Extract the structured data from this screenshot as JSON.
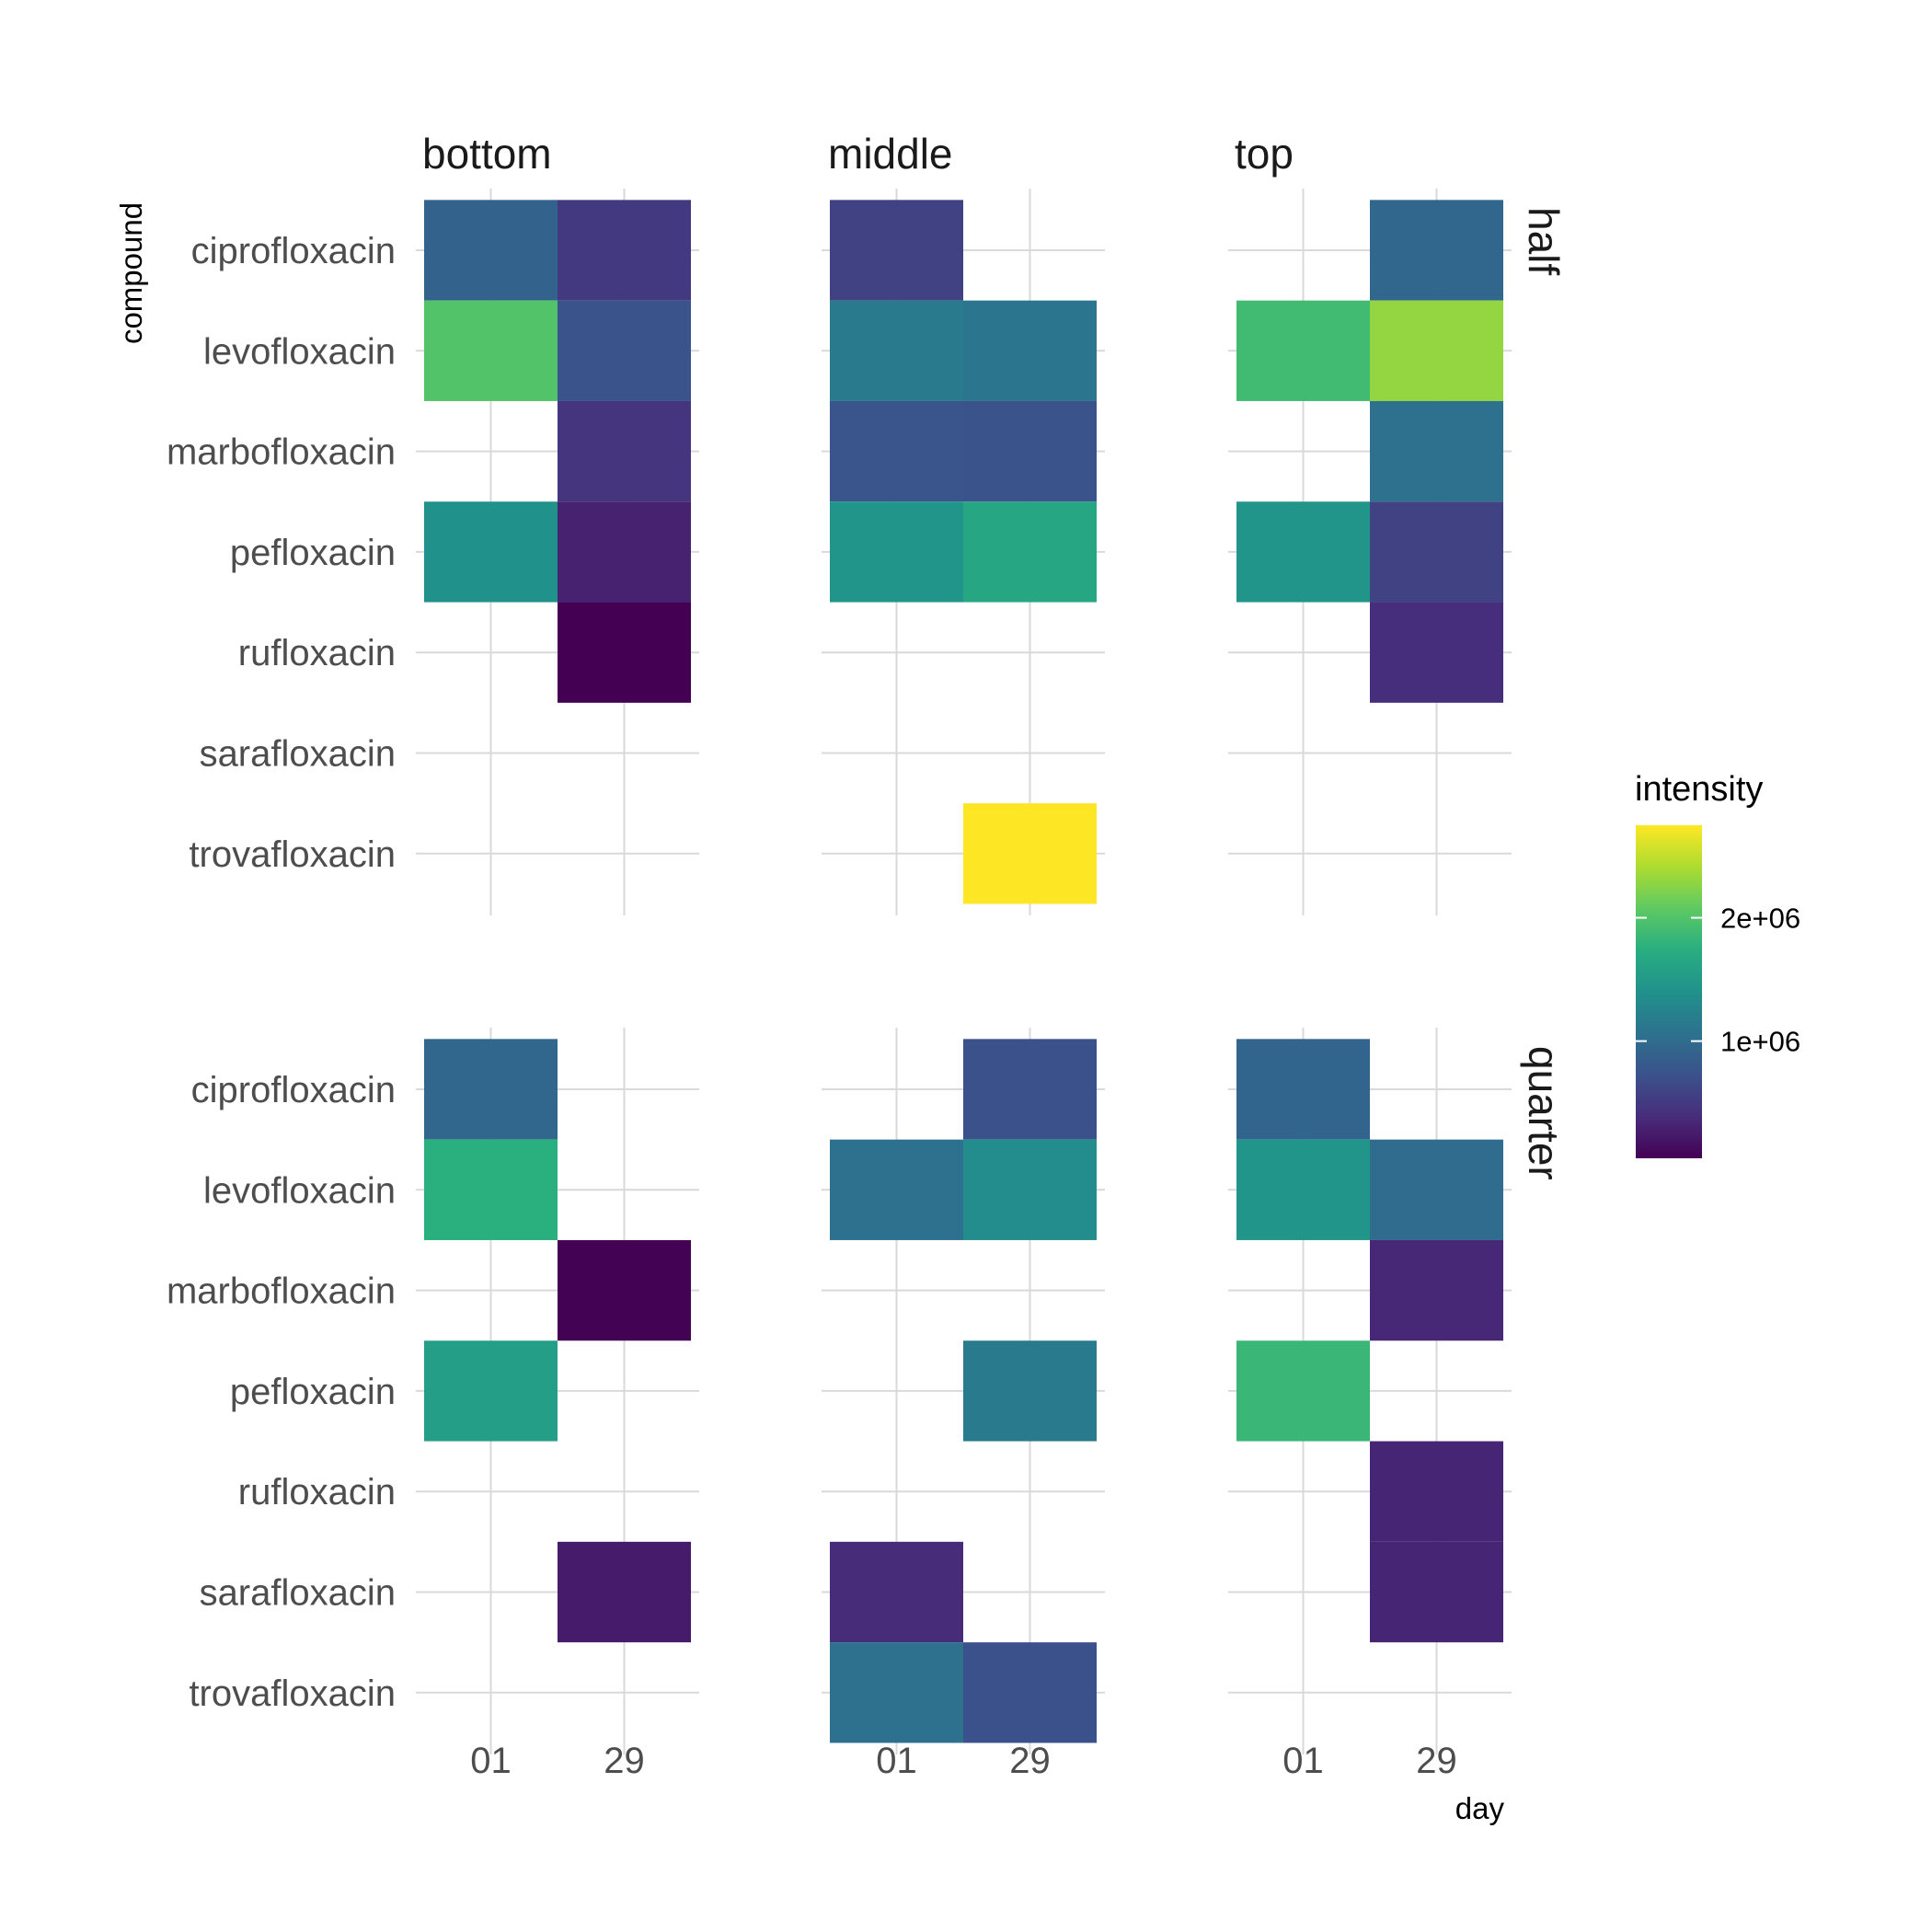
{
  "chart_data": {
    "type": "heatmap",
    "xlabel": "day",
    "ylabel": "compound",
    "x_categories": [
      "01",
      "29"
    ],
    "y_categories": [
      "ciprofloxacin",
      "levofloxacin",
      "marbofloxacin",
      "pefloxacin",
      "rufloxacin",
      "sarafloxacin",
      "trovafloxacin"
    ],
    "col_facets": [
      "bottom",
      "middle",
      "top"
    ],
    "row_facets": [
      "half",
      "quarter"
    ],
    "fill": {
      "name": "intensity",
      "palette": "viridis",
      "min": 50000,
      "max": 2750000,
      "breaks": [
        1000000,
        2000000
      ],
      "break_labels": [
        "1e+06",
        "2e+06"
      ]
    },
    "grid": true,
    "legend_position": "right",
    "cells": [
      {
        "row": "half",
        "col": "bottom",
        "day": "01",
        "compound": "ciprofloxacin",
        "value": 900000
      },
      {
        "row": "half",
        "col": "bottom",
        "day": "29",
        "compound": "ciprofloxacin",
        "value": 500000
      },
      {
        "row": "half",
        "col": "bottom",
        "day": "01",
        "compound": "levofloxacin",
        "value": 2000000
      },
      {
        "row": "half",
        "col": "bottom",
        "day": "29",
        "compound": "levofloxacin",
        "value": 750000
      },
      {
        "row": "half",
        "col": "bottom",
        "day": "29",
        "compound": "marbofloxacin",
        "value": 450000
      },
      {
        "row": "half",
        "col": "bottom",
        "day": "01",
        "compound": "pefloxacin",
        "value": 1400000
      },
      {
        "row": "half",
        "col": "bottom",
        "day": "29",
        "compound": "pefloxacin",
        "value": 300000
      },
      {
        "row": "half",
        "col": "bottom",
        "day": "29",
        "compound": "rufloxacin",
        "value": 50000
      },
      {
        "row": "half",
        "col": "middle",
        "day": "01",
        "compound": "ciprofloxacin",
        "value": 580000
      },
      {
        "row": "half",
        "col": "middle",
        "day": "01",
        "compound": "levofloxacin",
        "value": 1150000
      },
      {
        "row": "half",
        "col": "middle",
        "day": "29",
        "compound": "levofloxacin",
        "value": 1100000
      },
      {
        "row": "half",
        "col": "middle",
        "day": "01",
        "compound": "marbofloxacin",
        "value": 760000
      },
      {
        "row": "half",
        "col": "middle",
        "day": "29",
        "compound": "marbofloxacin",
        "value": 740000
      },
      {
        "row": "half",
        "col": "middle",
        "day": "01",
        "compound": "pefloxacin",
        "value": 1450000
      },
      {
        "row": "half",
        "col": "middle",
        "day": "29",
        "compound": "pefloxacin",
        "value": 1650000
      },
      {
        "row": "half",
        "col": "middle",
        "day": "29",
        "compound": "trovafloxacin",
        "value": 2750000
      },
      {
        "row": "half",
        "col": "top",
        "day": "29",
        "compound": "ciprofloxacin",
        "value": 950000
      },
      {
        "row": "half",
        "col": "top",
        "day": "01",
        "compound": "levofloxacin",
        "value": 1900000
      },
      {
        "row": "half",
        "col": "top",
        "day": "29",
        "compound": "levofloxacin",
        "value": 2300000
      },
      {
        "row": "half",
        "col": "top",
        "day": "29",
        "compound": "marbofloxacin",
        "value": 1050000
      },
      {
        "row": "half",
        "col": "top",
        "day": "01",
        "compound": "pefloxacin",
        "value": 1450000
      },
      {
        "row": "half",
        "col": "top",
        "day": "29",
        "compound": "pefloxacin",
        "value": 580000
      },
      {
        "row": "half",
        "col": "top",
        "day": "29",
        "compound": "rufloxacin",
        "value": 400000
      },
      {
        "row": "quarter",
        "col": "bottom",
        "day": "01",
        "compound": "ciprofloxacin",
        "value": 950000
      },
      {
        "row": "quarter",
        "col": "bottom",
        "day": "01",
        "compound": "levofloxacin",
        "value": 1750000
      },
      {
        "row": "quarter",
        "col": "bottom",
        "day": "29",
        "compound": "marbofloxacin",
        "value": 60000
      },
      {
        "row": "quarter",
        "col": "bottom",
        "day": "01",
        "compound": "pefloxacin",
        "value": 1550000
      },
      {
        "row": "quarter",
        "col": "bottom",
        "day": "29",
        "compound": "sarafloxacin",
        "value": 250000
      },
      {
        "row": "quarter",
        "col": "middle",
        "day": "29",
        "compound": "ciprofloxacin",
        "value": 720000
      },
      {
        "row": "quarter",
        "col": "middle",
        "day": "01",
        "compound": "levofloxacin",
        "value": 1050000
      },
      {
        "row": "quarter",
        "col": "middle",
        "day": "29",
        "compound": "levofloxacin",
        "value": 1350000
      },
      {
        "row": "quarter",
        "col": "middle",
        "day": "29",
        "compound": "pefloxacin",
        "value": 1150000
      },
      {
        "row": "quarter",
        "col": "middle",
        "day": "01",
        "compound": "sarafloxacin",
        "value": 380000
      },
      {
        "row": "quarter",
        "col": "middle",
        "day": "01",
        "compound": "trovafloxacin",
        "value": 1050000
      },
      {
        "row": "quarter",
        "col": "middle",
        "day": "29",
        "compound": "trovafloxacin",
        "value": 720000
      },
      {
        "row": "quarter",
        "col": "top",
        "day": "01",
        "compound": "ciprofloxacin",
        "value": 930000
      },
      {
        "row": "quarter",
        "col": "top",
        "day": "01",
        "compound": "levofloxacin",
        "value": 1450000
      },
      {
        "row": "quarter",
        "col": "top",
        "day": "29",
        "compound": "levofloxacin",
        "value": 1000000
      },
      {
        "row": "quarter",
        "col": "top",
        "day": "29",
        "compound": "marbofloxacin",
        "value": 350000
      },
      {
        "row": "quarter",
        "col": "top",
        "day": "01",
        "compound": "pefloxacin",
        "value": 1850000
      },
      {
        "row": "quarter",
        "col": "top",
        "day": "29",
        "compound": "rufloxacin",
        "value": 330000
      },
      {
        "row": "quarter",
        "col": "top",
        "day": "29",
        "compound": "sarafloxacin",
        "value": 330000
      }
    ]
  }
}
